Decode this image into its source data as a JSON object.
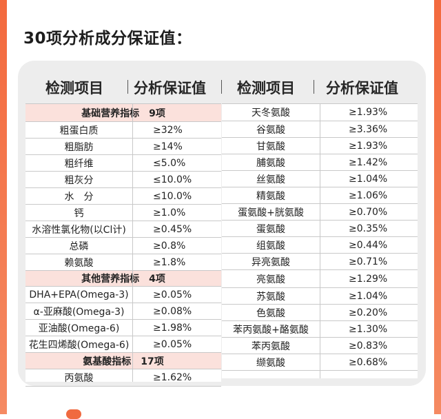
{
  "heading": "30项分析成分保证值：",
  "headers": {
    "col1_item": "检测项目",
    "col1_value": "分析保证值",
    "col2_item": "检测项目",
    "col2_value": "分析保证值"
  },
  "left_rows": [
    {
      "type": "section",
      "name": "基础营养指标",
      "count": "9项"
    },
    {
      "name": "粗蛋白质",
      "value": "≥32%"
    },
    {
      "name": "粗脂肪",
      "value": "≥14%"
    },
    {
      "name": "粗纤维",
      "value": "≤5.0%"
    },
    {
      "name": "粗灰分",
      "value": "≤10.0%"
    },
    {
      "name": "水　分",
      "value": "≤10.0%"
    },
    {
      "name": "钙",
      "value": "≥1.0%"
    },
    {
      "name": "水溶性氯化物(以Cl计)",
      "value": "≥0.45%"
    },
    {
      "name": "总磷",
      "value": "≥0.8%"
    },
    {
      "name": "赖氨酸",
      "value": "≥1.8%"
    },
    {
      "type": "section",
      "name": "其他营养指标",
      "count": "4项"
    },
    {
      "name": "DHA+EPA(Omega-3)",
      "value": "≥0.05%"
    },
    {
      "name": "α-亚麻酸(Omega-3)",
      "value": "≥0.08%"
    },
    {
      "name": "亚油酸(Omega-6)",
      "value": "≥1.98%"
    },
    {
      "name": "花生四烯酸(Omega-6)",
      "value": "≥0.05%"
    },
    {
      "type": "section",
      "name": "氨基酸指标",
      "count": "17项"
    },
    {
      "name": "丙氨酸",
      "value": "≥1.62%"
    }
  ],
  "right_rows": [
    {
      "name": "天冬氨酸",
      "value": "≥1.93%"
    },
    {
      "name": "谷氨酸",
      "value": "≥3.36%"
    },
    {
      "name": "甘氨酸",
      "value": "≥1.93%"
    },
    {
      "name": "脯氨酸",
      "value": "≥1.42%"
    },
    {
      "name": "丝氨酸",
      "value": "≥1.04%"
    },
    {
      "name": "精氨酸",
      "value": "≥1.06%"
    },
    {
      "name": "蛋氨酸+胱氨酸",
      "value": "≥0.70%"
    },
    {
      "name": "蛋氨酸",
      "value": "≥0.35%"
    },
    {
      "name": "组氨酸",
      "value": "≥0.44%"
    },
    {
      "name": "异亮氨酸",
      "value": "≥0.71%"
    },
    {
      "name": "亮氨酸",
      "value": "≥1.29%"
    },
    {
      "name": "苏氨酸",
      "value": "≥1.04%"
    },
    {
      "name": "色氨酸",
      "value": "≥0.20%"
    },
    {
      "name": "苯丙氨酸+酪氨酸",
      "value": "≥1.30%"
    },
    {
      "name": "苯丙氨酸",
      "value": "≥0.83%"
    },
    {
      "name": "缬氨酸",
      "value": "≥0.68%"
    }
  ]
}
